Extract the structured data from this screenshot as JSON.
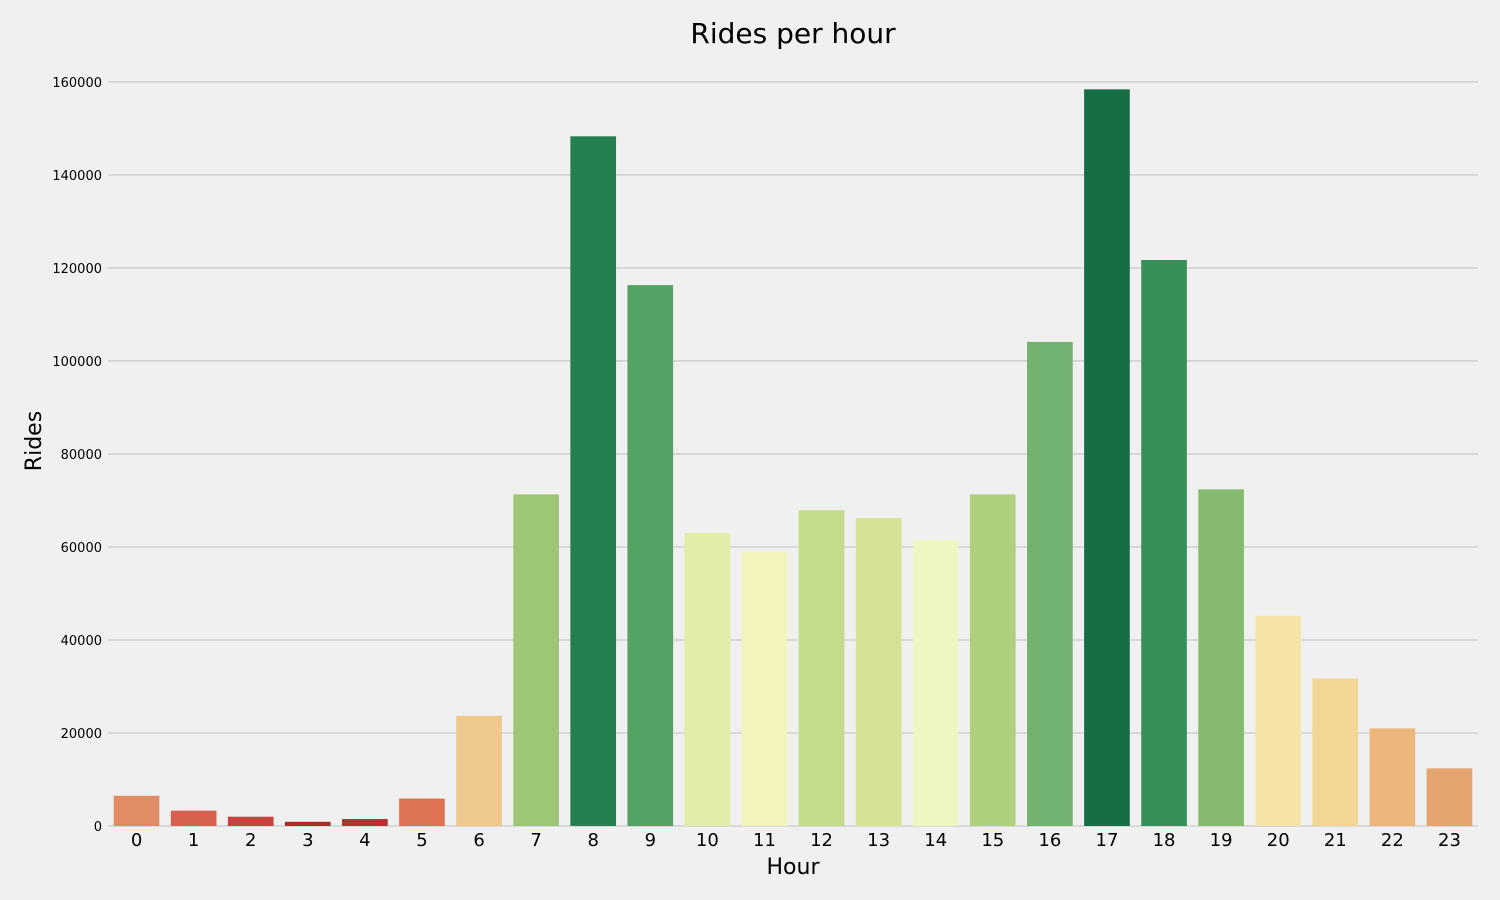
{
  "chart_data": {
    "type": "bar",
    "title": "Rides per hour",
    "xlabel": "Hour",
    "ylabel": "Rides",
    "categories": [
      "0",
      "1",
      "2",
      "3",
      "4",
      "5",
      "6",
      "7",
      "8",
      "9",
      "10",
      "11",
      "12",
      "13",
      "14",
      "15",
      "16",
      "17",
      "18",
      "19",
      "20",
      "21",
      "22",
      "23"
    ],
    "values": [
      6500,
      3300,
      2000,
      900,
      1500,
      5900,
      23700,
      71300,
      148300,
      116300,
      63000,
      59000,
      67900,
      66200,
      61500,
      71300,
      104100,
      158400,
      121700,
      72400,
      45200,
      31700,
      21000,
      12400
    ],
    "colors": [
      "#e08c64",
      "#d5604d",
      "#c9413c",
      "#ab2a28",
      "#b53131",
      "#dd7254",
      "#eec98b",
      "#9cc775",
      "#24804e",
      "#53a264",
      "#e2eda9",
      "#f3f3be",
      "#c3dc8a",
      "#d4e494",
      "#eff6c1",
      "#aed07c",
      "#72b26f",
      "#166e44",
      "#378f5a",
      "#87ba70",
      "#f5e4a7",
      "#f2d694",
      "#edb67d",
      "#e6a46f"
    ],
    "yticks": [
      0,
      20000,
      40000,
      60000,
      80000,
      100000,
      120000,
      140000,
      160000
    ],
    "ylim": [
      0,
      166000
    ],
    "grid": "horizontal"
  }
}
